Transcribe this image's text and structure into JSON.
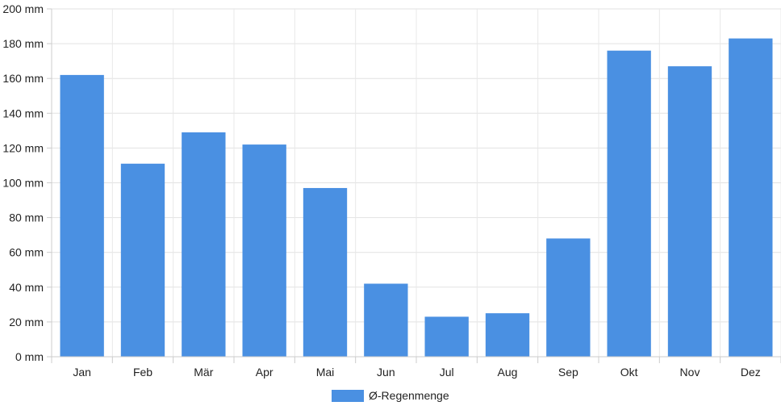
{
  "chart_data": {
    "type": "bar",
    "categories": [
      "Jan",
      "Feb",
      "Mär",
      "Apr",
      "Mai",
      "Jun",
      "Jul",
      "Aug",
      "Sep",
      "Okt",
      "Nov",
      "Dez"
    ],
    "series": [
      {
        "name": "Ø-Regenmenge",
        "values": [
          162,
          111,
          129,
          122,
          97,
          42,
          23,
          25,
          68,
          176,
          167,
          183
        ],
        "color": "#4a90e2"
      }
    ],
    "ylim": [
      0,
      200
    ],
    "y_ticks": [
      0,
      20,
      40,
      60,
      80,
      100,
      120,
      140,
      160,
      180,
      200
    ],
    "y_unit": "mm",
    "grid": true,
    "legend_position": "bottom-center"
  }
}
